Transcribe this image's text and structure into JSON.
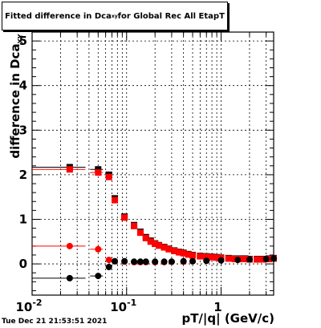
{
  "title": {
    "prefix": "Fitted difference in Dca",
    "subscript": "xy",
    "suffix": " for Global Rec All EtapT"
  },
  "footer": {
    "timestamp": "Tue Dec 21 21:53:51 2021"
  },
  "chart_data": {
    "type": "scatter",
    "title": "Fitted difference in Dca_xy for Global Rec All EtapT",
    "xlabel": "pT/|q| (GeV/c)",
    "ylabel": "difference in Dca_XY",
    "xscale": "log",
    "xlim": [
      0.01,
      3.6
    ],
    "ylim": [
      -0.7,
      5.2
    ],
    "grid": true,
    "x_ticks": [
      {
        "value": 0.01,
        "base": "10",
        "exp": "-2"
      },
      {
        "value": 0.1,
        "base": "10",
        "exp": "-1"
      },
      {
        "value": 1,
        "base": "1",
        "exp": ""
      }
    ],
    "y_ticks": [
      0,
      1,
      2,
      3,
      4,
      5
    ],
    "series": [
      {
        "color": "#000000",
        "marker": "square",
        "x": [
          0.025,
          0.05,
          0.065,
          0.075,
          0.095,
          0.12,
          0.14,
          0.16,
          0.18,
          0.2,
          0.22,
          0.25,
          0.28,
          0.32,
          0.36,
          0.4,
          0.45,
          0.5,
          0.6,
          0.7,
          0.8,
          0.9,
          1.0,
          1.2,
          1.4,
          1.6,
          1.8,
          2.0,
          2.4,
          2.8,
          3.2,
          3.6
        ],
        "y": [
          2.17,
          2.12,
          2.0,
          1.47,
          1.06,
          0.87,
          0.72,
          0.6,
          0.52,
          0.46,
          0.42,
          0.38,
          0.34,
          0.3,
          0.27,
          0.25,
          0.22,
          0.2,
          0.18,
          0.17,
          0.16,
          0.15,
          0.14,
          0.13,
          0.12,
          0.12,
          0.12,
          0.11,
          0.11,
          0.11,
          0.12,
          0.13
        ]
      },
      {
        "color": "#ff0000",
        "marker": "square",
        "x": [
          0.025,
          0.05,
          0.065,
          0.075,
          0.095,
          0.12,
          0.14,
          0.16,
          0.18,
          0.2,
          0.22,
          0.25,
          0.28,
          0.32,
          0.36,
          0.4,
          0.45,
          0.5,
          0.6,
          0.7,
          0.8,
          0.9,
          1.0,
          1.2,
          1.4,
          1.6,
          1.8,
          2.0,
          2.4,
          2.8,
          3.2,
          3.6
        ],
        "y": [
          2.12,
          2.05,
          1.95,
          1.43,
          1.04,
          0.85,
          0.7,
          0.58,
          0.5,
          0.45,
          0.41,
          0.37,
          0.33,
          0.29,
          0.26,
          0.24,
          0.21,
          0.19,
          0.17,
          0.16,
          0.15,
          0.14,
          0.13,
          0.12,
          0.11,
          0.11,
          0.11,
          0.1,
          0.1,
          0.1,
          0.11,
          0.12
        ]
      },
      {
        "color": "#ff0000",
        "marker": "circle",
        "x": [
          0.025,
          0.05,
          0.065,
          0.075,
          0.095,
          0.12,
          0.14,
          0.16,
          0.2,
          0.25,
          0.3,
          0.4,
          0.5,
          0.7,
          1.0,
          1.5,
          2.0,
          3.0,
          3.6
        ],
        "y": [
          0.4,
          0.33,
          0.09,
          0.06,
          0.05,
          0.04,
          0.04,
          0.04,
          0.04,
          0.04,
          0.05,
          0.05,
          0.06,
          0.07,
          0.08,
          0.09,
          0.1,
          0.11,
          0.12
        ]
      },
      {
        "color": "#000000",
        "marker": "circle",
        "x": [
          0.025,
          0.05,
          0.065,
          0.075,
          0.095,
          0.12,
          0.14,
          0.16,
          0.2,
          0.25,
          0.3,
          0.4,
          0.5,
          0.7,
          1.0,
          1.5,
          2.0,
          3.0,
          3.6
        ],
        "y": [
          -0.32,
          -0.27,
          -0.07,
          0.06,
          0.06,
          0.05,
          0.05,
          0.05,
          0.05,
          0.05,
          0.05,
          0.06,
          0.06,
          0.07,
          0.08,
          0.09,
          0.1,
          0.11,
          0.12
        ]
      }
    ]
  }
}
